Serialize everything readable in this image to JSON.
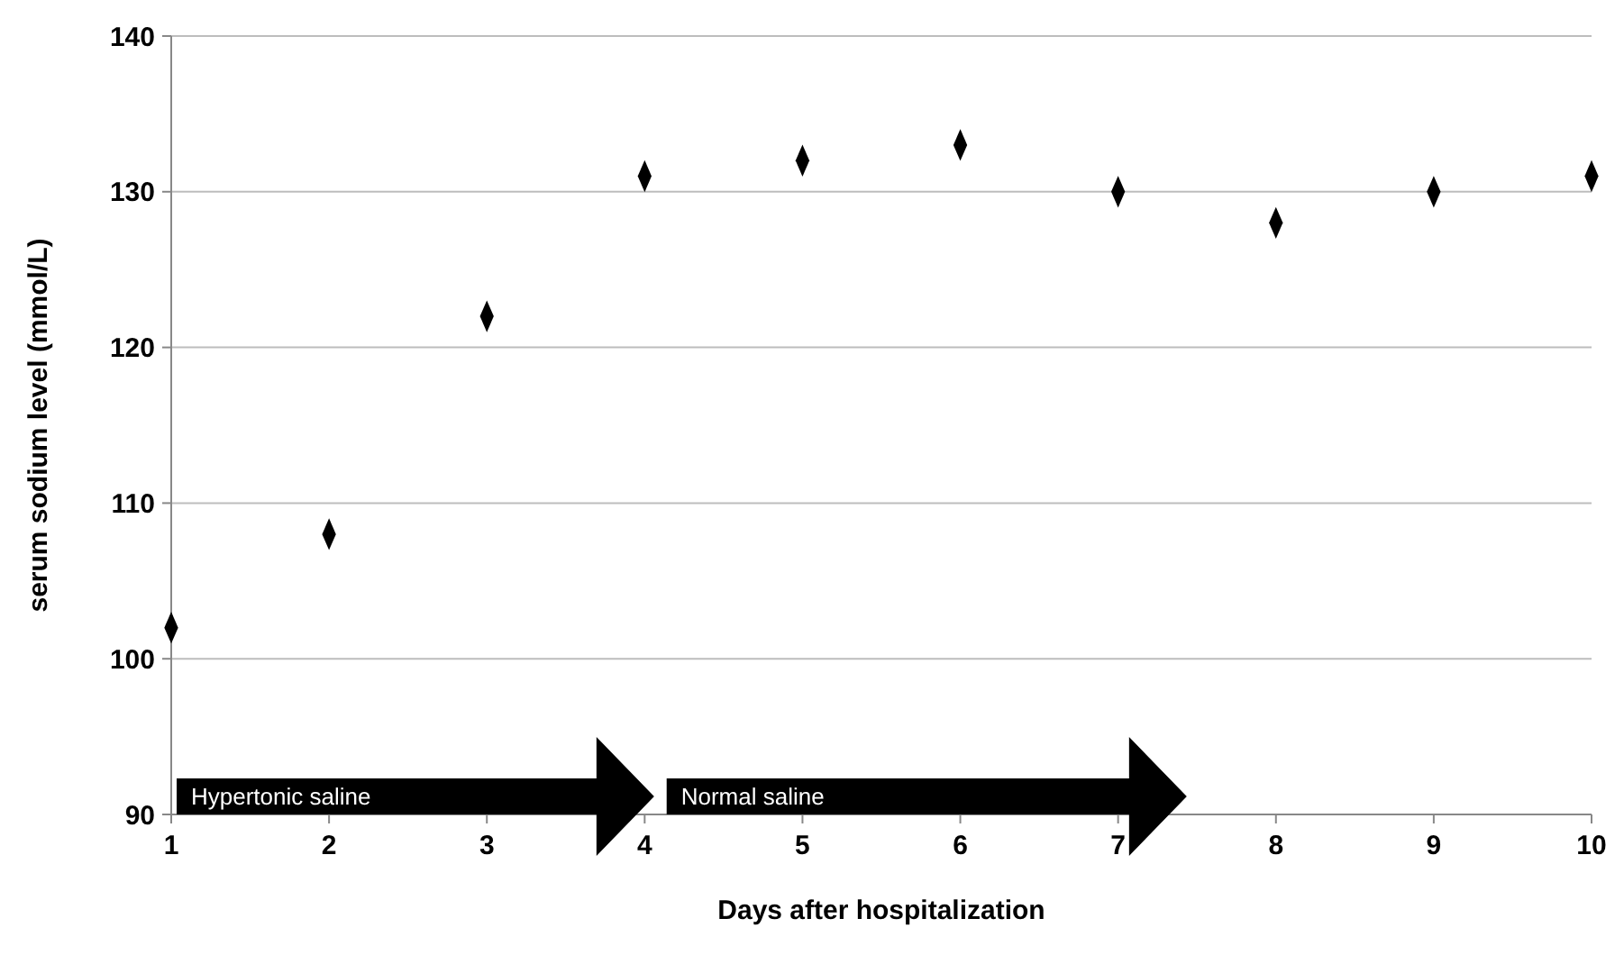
{
  "chart_data": {
    "type": "scatter",
    "xlabel": "Days after hospitalization",
    "ylabel": "serum sodium level (mmol/L)",
    "x": [
      1,
      2,
      3,
      4,
      5,
      6,
      7,
      8,
      9,
      10
    ],
    "values": [
      102,
      108,
      122,
      131,
      132,
      133,
      130,
      128,
      130,
      131
    ],
    "color": "#000000",
    "marker": "diamond",
    "xlim": [
      1,
      10
    ],
    "xticks": [
      1,
      2,
      3,
      4,
      5,
      6,
      7,
      8,
      9,
      10
    ],
    "ylim": [
      90,
      140
    ],
    "yticks": [
      90,
      100,
      110,
      120,
      130,
      140
    ],
    "grid": "y",
    "annotations": [
      "Hypertonic saline",
      "Normal saline"
    ]
  }
}
